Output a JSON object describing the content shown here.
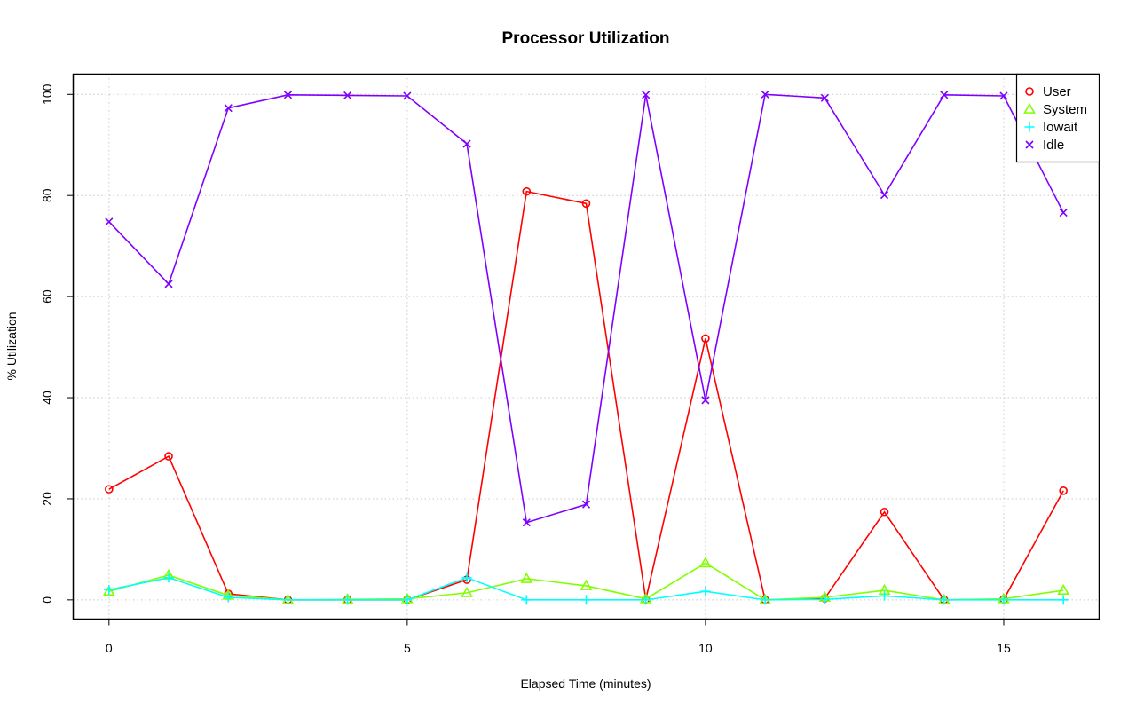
{
  "chart_data": {
    "type": "line",
    "title": "Processor Utilization",
    "xlabel": "Elapsed Time (minutes)",
    "ylabel": "% Utilization",
    "x": [
      0,
      1,
      2,
      3,
      4,
      5,
      6,
      7,
      8,
      9,
      10,
      11,
      12,
      13,
      14,
      15,
      16
    ],
    "xlim": [
      -0.6,
      16.6
    ],
    "ylim": [
      -3.8,
      104
    ],
    "xticks": [
      0,
      5,
      10,
      15
    ],
    "yticks": [
      0,
      20,
      40,
      60,
      80,
      100
    ],
    "xtick_labels": [
      "0",
      "5",
      "10",
      "15"
    ],
    "ytick_labels": [
      "0",
      "20",
      "40",
      "60",
      "80",
      "100"
    ],
    "grid": true,
    "legend_position": "top-right",
    "series": [
      {
        "name": "User",
        "color": "#ff0000",
        "marker": "circle",
        "values": [
          21.9,
          28.4,
          1.2,
          0.0,
          0.0,
          0.0,
          4.0,
          80.8,
          78.4,
          0.1,
          51.7,
          0.0,
          0.3,
          17.4,
          0.0,
          0.1,
          21.6
        ]
      },
      {
        "name": "System",
        "color": "#80ff00",
        "marker": "triangle",
        "values": [
          1.7,
          4.9,
          0.9,
          0.0,
          0.1,
          0.2,
          1.4,
          4.2,
          2.8,
          0.2,
          7.3,
          0.0,
          0.5,
          1.9,
          0.0,
          0.2,
          1.9
        ]
      },
      {
        "name": "Iowait",
        "color": "#00ffff",
        "marker": "plus",
        "values": [
          2.0,
          4.4,
          0.5,
          0.0,
          0.0,
          0.0,
          4.4,
          0.0,
          0.0,
          0.0,
          1.7,
          0.0,
          0.1,
          0.8,
          0.0,
          0.0,
          0.0
        ]
      },
      {
        "name": "Idle",
        "color": "#8000ff",
        "marker": "x",
        "values": [
          74.8,
          62.5,
          97.3,
          99.9,
          99.8,
          99.7,
          90.2,
          15.3,
          18.9,
          99.9,
          39.5,
          100.0,
          99.3,
          80.1,
          99.9,
          99.7,
          76.6
        ]
      }
    ]
  }
}
